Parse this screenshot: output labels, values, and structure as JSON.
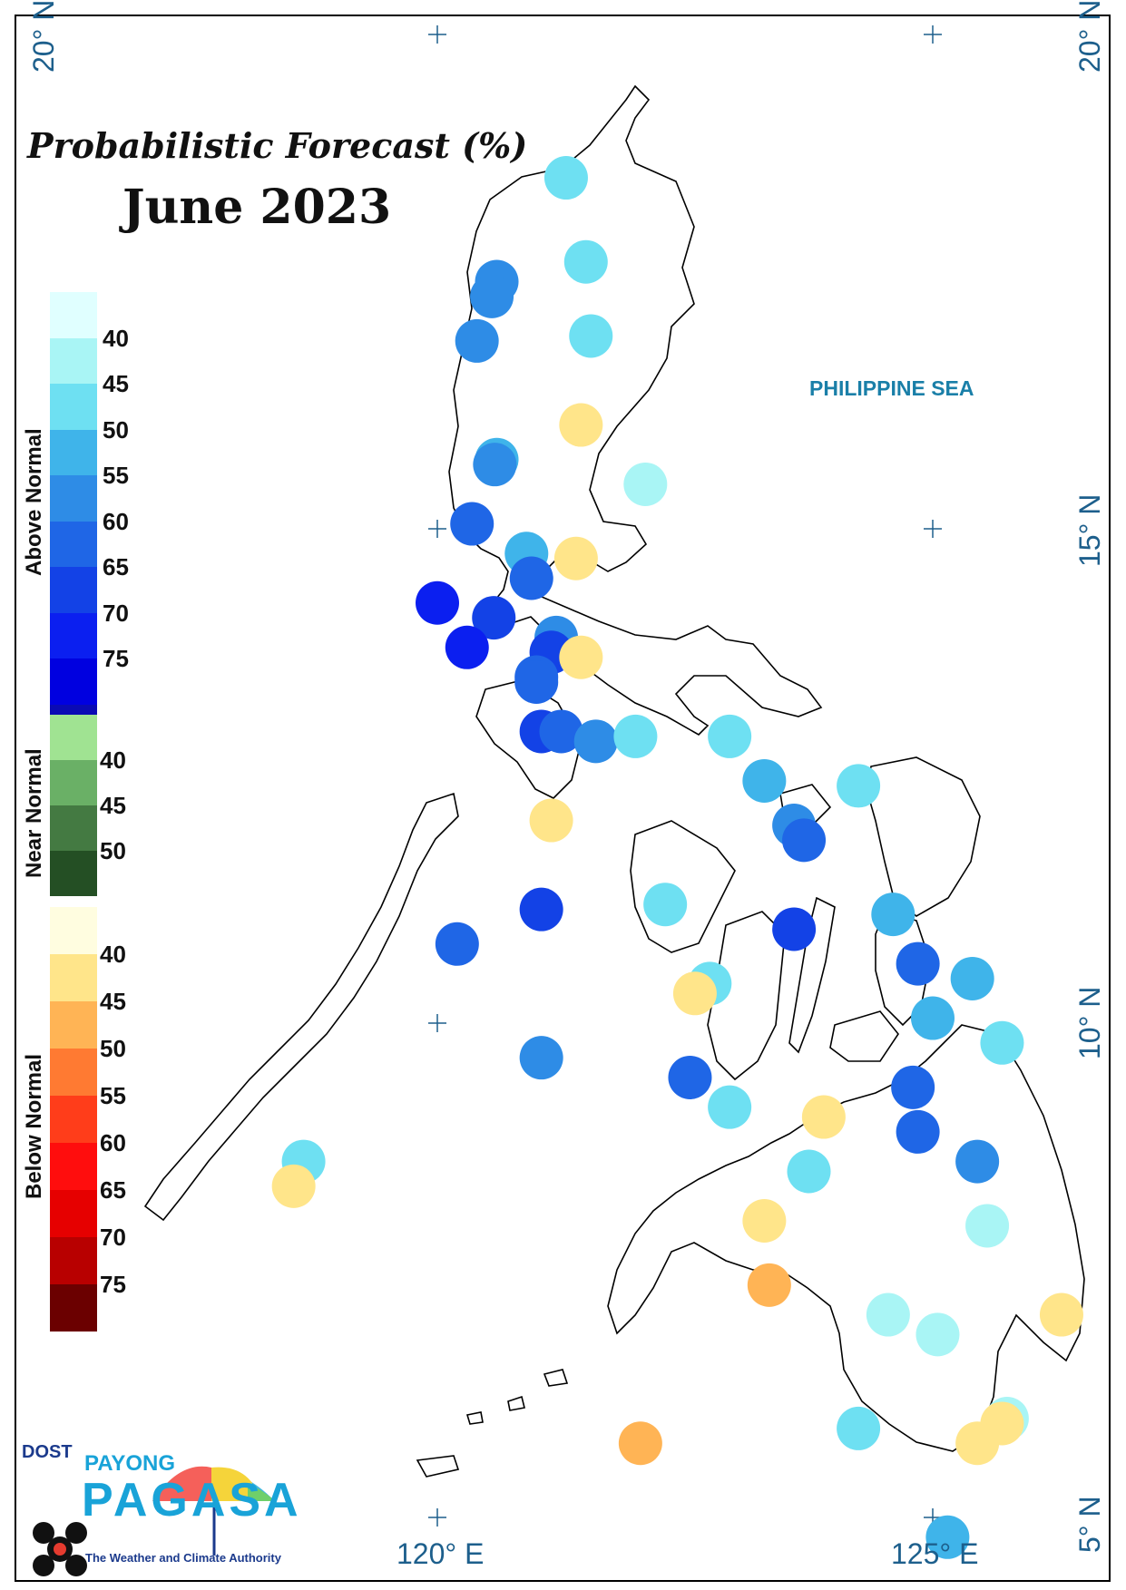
{
  "title": "Probabilistic Forecast (%)",
  "subtitle": "June 2023",
  "sea_label": "PHILIPPINE SEA",
  "axes": {
    "lat_labels": [
      "20° N",
      "15° N",
      "10° N",
      "5° N"
    ],
    "lon_labels": [
      "120° E",
      "125° E"
    ]
  },
  "legend": {
    "above": {
      "label": "Above Normal",
      "ticks": [
        "40",
        "45",
        "50",
        "55",
        "60",
        "65",
        "70",
        "75"
      ],
      "colors": [
        "#e0ffff",
        "#a9f5f5",
        "#6ee0f2",
        "#3fb4ea",
        "#2e8ce6",
        "#1f66e6",
        "#1342e6",
        "#0b1ff0",
        "#0000e0",
        "#0a0ab4"
      ]
    },
    "near": {
      "label": "Near Normal",
      "ticks": [
        "40",
        "45",
        "50"
      ],
      "colors": [
        "#a0e392",
        "#6ab066",
        "#447a42",
        "#244f24"
      ]
    },
    "below": {
      "label": "Below Normal",
      "ticks": [
        "40",
        "45",
        "50",
        "55",
        "60",
        "65",
        "70",
        "75"
      ],
      "colors": [
        "#fffde0",
        "#ffe58a",
        "#ffb455",
        "#ff7a32",
        "#ff3d1a",
        "#ff0d0d",
        "#e60000",
        "#b80000",
        "#6b0000"
      ]
    }
  },
  "logo": {
    "dost": "DOST",
    "payong": "PAYONG",
    "pagasa": "PAGASA",
    "tagline": "The Weather and Climate Authority"
  },
  "stations": [
    {
      "lon": 121.3,
      "lat": 18.55,
      "category": "above",
      "level": 45
    },
    {
      "lon": 121.5,
      "lat": 17.7,
      "category": "above",
      "level": 45
    },
    {
      "lon": 120.6,
      "lat": 17.5,
      "category": "above",
      "level": 55
    },
    {
      "lon": 120.55,
      "lat": 17.35,
      "category": "above",
      "level": 55
    },
    {
      "lon": 120.4,
      "lat": 16.9,
      "category": "above",
      "level": 55
    },
    {
      "lon": 121.55,
      "lat": 16.95,
      "category": "above",
      "level": 45
    },
    {
      "lon": 121.45,
      "lat": 16.05,
      "category": "below",
      "level": 40
    },
    {
      "lon": 120.6,
      "lat": 15.7,
      "category": "above",
      "level": 50
    },
    {
      "lon": 120.58,
      "lat": 15.65,
      "category": "above",
      "level": 55
    },
    {
      "lon": 122.1,
      "lat": 15.45,
      "category": "above",
      "level": 40
    },
    {
      "lon": 120.35,
      "lat": 15.05,
      "category": "above",
      "level": 60
    },
    {
      "lon": 120.9,
      "lat": 14.75,
      "category": "above",
      "level": 50
    },
    {
      "lon": 121.4,
      "lat": 14.7,
      "category": "below",
      "level": 40
    },
    {
      "lon": 120.95,
      "lat": 14.5,
      "category": "above",
      "level": 60
    },
    {
      "lon": 120.0,
      "lat": 14.25,
      "category": "above",
      "level": 70
    },
    {
      "lon": 120.57,
      "lat": 14.1,
      "category": "above",
      "level": 65
    },
    {
      "lon": 121.2,
      "lat": 13.9,
      "category": "above",
      "level": 55
    },
    {
      "lon": 121.15,
      "lat": 13.75,
      "category": "above",
      "level": 65
    },
    {
      "lon": 120.3,
      "lat": 13.8,
      "category": "above",
      "level": 70
    },
    {
      "lon": 121.45,
      "lat": 13.7,
      "category": "below",
      "level": 40
    },
    {
      "lon": 121.0,
      "lat": 13.5,
      "category": "above",
      "level": 60
    },
    {
      "lon": 121.0,
      "lat": 13.45,
      "category": "above",
      "level": 60
    },
    {
      "lon": 121.05,
      "lat": 12.95,
      "category": "above",
      "level": 65
    },
    {
      "lon": 121.25,
      "lat": 12.95,
      "category": "above",
      "level": 60
    },
    {
      "lon": 121.6,
      "lat": 12.85,
      "category": "above",
      "level": 55
    },
    {
      "lon": 122.0,
      "lat": 12.9,
      "category": "above",
      "level": 45
    },
    {
      "lon": 122.95,
      "lat": 12.9,
      "category": "above",
      "level": 45
    },
    {
      "lon": 123.3,
      "lat": 12.45,
      "category": "above",
      "level": 50
    },
    {
      "lon": 124.25,
      "lat": 12.4,
      "category": "above",
      "level": 45
    },
    {
      "lon": 121.15,
      "lat": 12.05,
      "category": "below",
      "level": 40
    },
    {
      "lon": 123.6,
      "lat": 12.0,
      "category": "above",
      "level": 55
    },
    {
      "lon": 123.7,
      "lat": 11.85,
      "category": "above",
      "level": 60
    },
    {
      "lon": 122.3,
      "lat": 11.2,
      "category": "above",
      "level": 45
    },
    {
      "lon": 124.6,
      "lat": 11.1,
      "category": "above",
      "level": 50
    },
    {
      "lon": 121.05,
      "lat": 11.15,
      "category": "above",
      "level": 65
    },
    {
      "lon": 123.6,
      "lat": 10.95,
      "category": "above",
      "level": 65
    },
    {
      "lon": 120.2,
      "lat": 10.8,
      "category": "above",
      "level": 60
    },
    {
      "lon": 124.85,
      "lat": 10.6,
      "category": "above",
      "level": 60
    },
    {
      "lon": 125.4,
      "lat": 10.45,
      "category": "above",
      "level": 50
    },
    {
      "lon": 122.75,
      "lat": 10.4,
      "category": "above",
      "level": 45
    },
    {
      "lon": 122.6,
      "lat": 10.3,
      "category": "below",
      "level": 40
    },
    {
      "lon": 125.0,
      "lat": 10.05,
      "category": "above",
      "level": 50
    },
    {
      "lon": 125.7,
      "lat": 9.8,
      "category": "above",
      "level": 45
    },
    {
      "lon": 121.05,
      "lat": 9.65,
      "category": "above",
      "level": 55
    },
    {
      "lon": 122.55,
      "lat": 9.45,
      "category": "above",
      "level": 60
    },
    {
      "lon": 124.8,
      "lat": 9.35,
      "category": "above",
      "level": 60
    },
    {
      "lon": 122.95,
      "lat": 9.15,
      "category": "above",
      "level": 45
    },
    {
      "lon": 123.9,
      "lat": 9.05,
      "category": "below",
      "level": 40
    },
    {
      "lon": 124.85,
      "lat": 8.9,
      "category": "above",
      "level": 60
    },
    {
      "lon": 125.45,
      "lat": 8.6,
      "category": "above",
      "level": 55
    },
    {
      "lon": 118.65,
      "lat": 8.6,
      "category": "above",
      "level": 45
    },
    {
      "lon": 118.55,
      "lat": 8.35,
      "category": "below",
      "level": 40
    },
    {
      "lon": 123.75,
      "lat": 8.5,
      "category": "above",
      "level": 45
    },
    {
      "lon": 123.3,
      "lat": 8.0,
      "category": "below",
      "level": 40
    },
    {
      "lon": 125.55,
      "lat": 7.95,
      "category": "above",
      "level": 40
    },
    {
      "lon": 123.35,
      "lat": 7.35,
      "category": "below",
      "level": 45
    },
    {
      "lon": 124.55,
      "lat": 7.05,
      "category": "above",
      "level": 40
    },
    {
      "lon": 125.05,
      "lat": 6.85,
      "category": "above",
      "level": 40
    },
    {
      "lon": 126.3,
      "lat": 7.05,
      "category": "below",
      "level": 40
    },
    {
      "lon": 125.75,
      "lat": 6.0,
      "category": "above",
      "level": 40
    },
    {
      "lon": 125.7,
      "lat": 5.95,
      "category": "below",
      "level": 40
    },
    {
      "lon": 125.45,
      "lat": 5.75,
      "category": "below",
      "level": 40
    },
    {
      "lon": 124.25,
      "lat": 5.9,
      "category": "above",
      "level": 45
    },
    {
      "lon": 122.05,
      "lat": 5.75,
      "category": "below",
      "level": 45
    },
    {
      "lon": 125.15,
      "lat": 4.8,
      "category": "above",
      "level": 50
    }
  ]
}
